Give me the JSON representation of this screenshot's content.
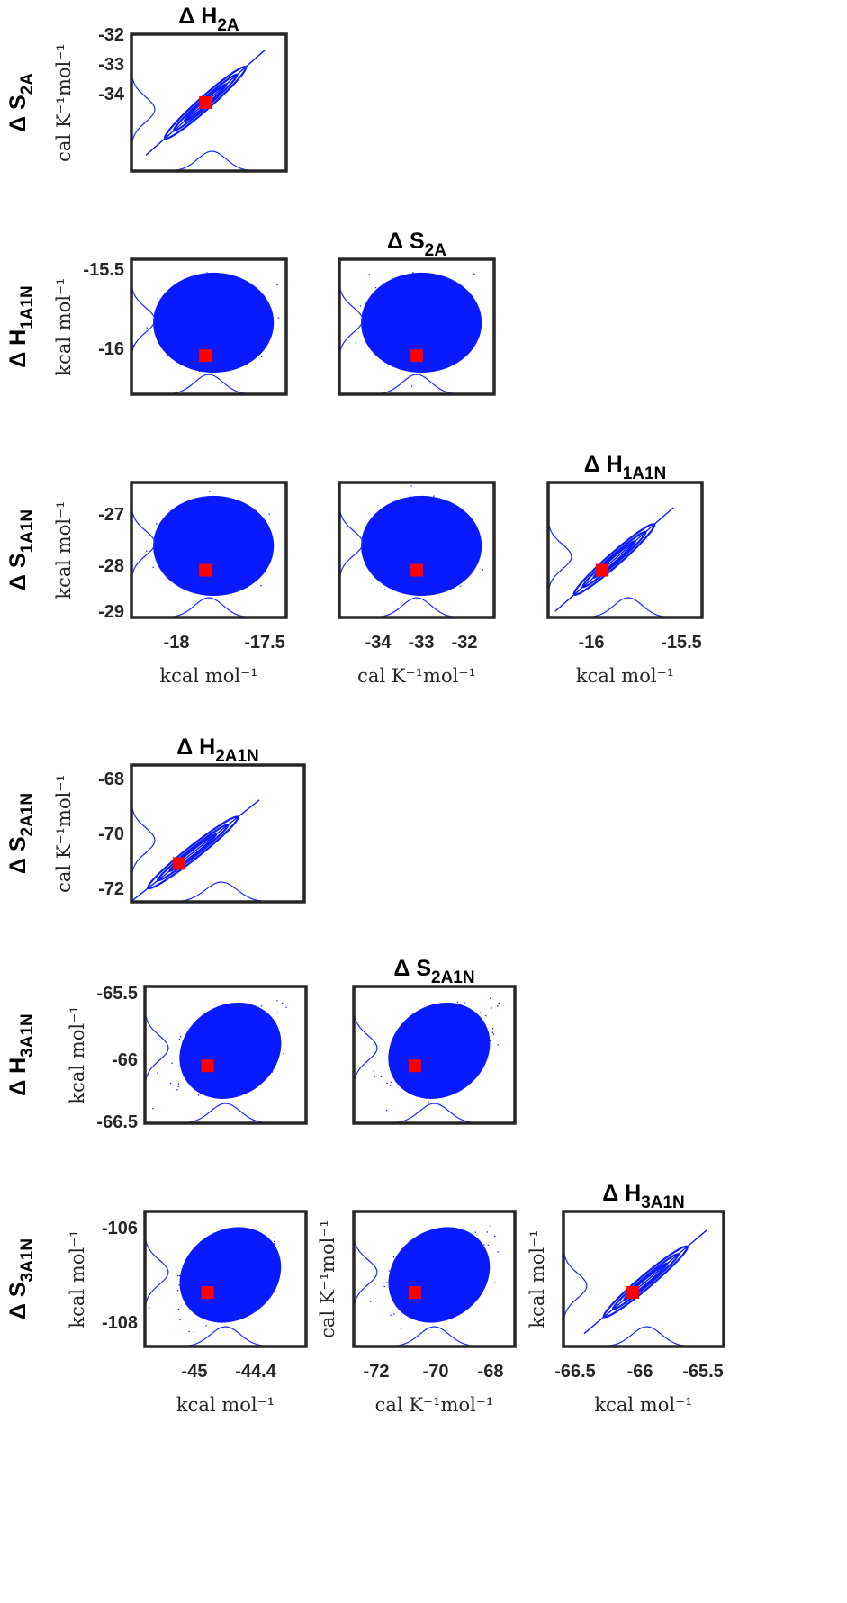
{
  "colors": {
    "samples": "#0a1aff",
    "estimate": "#ff0000",
    "frame": "#262626"
  },
  "chart_data": [
    {
      "type": "scatter",
      "name_top": "Δ H",
      "name_top_sub": "2A",
      "name_left": "Δ S",
      "name_left_sub": "2A",
      "ylabel": "cal K⁻¹mol⁻¹",
      "yticks": [
        "-32",
        "-33",
        "-34"
      ],
      "xlim": [
        -18.3,
        -17.4
      ],
      "ylim": [
        -34.9,
        -32
      ],
      "correlation": 0.99,
      "estimate": {
        "x": -17.87,
        "y": -33.45
      }
    },
    {
      "type": "scatter",
      "name_left": "Δ H",
      "name_left_sub": "1A1N",
      "ylabel": "kcal mol⁻¹",
      "yticks": [
        "-15.5",
        "-16"
      ],
      "xlim": [
        -18.3,
        -17.4
      ],
      "ylim": [
        -16.22,
        -15.45
      ],
      "correlation": 0.0,
      "estimate": {
        "x": -17.87,
        "y": -16.0
      }
    },
    {
      "type": "scatter",
      "name_top": "Δ S",
      "name_top_sub": "2A",
      "xlim": [
        -34.9,
        -32
      ],
      "ylim": [
        -16.22,
        -15.45
      ],
      "correlation": 0.0,
      "estimate": {
        "x": -33.45,
        "y": -16.0
      }
    },
    {
      "type": "scatter",
      "name_left": "Δ S",
      "name_left_sub": "1A1N",
      "ylabel": "kcal mol⁻¹",
      "yticks": [
        "-27",
        "-28",
        "-29"
      ],
      "xticks": [
        "-18",
        "-17.5"
      ],
      "xlabel": "kcal mol⁻¹",
      "xlim": [
        -18.3,
        -17.4
      ],
      "ylim": [
        -29.2,
        -26.2
      ],
      "correlation": 0.0,
      "estimate": {
        "x": -17.87,
        "y": -28.15
      }
    },
    {
      "type": "scatter",
      "xticks": [
        "-34",
        "-33",
        "-32"
      ],
      "xlabel": "cal K⁻¹mol⁻¹",
      "xlim": [
        -34.9,
        -32
      ],
      "ylim": [
        -29.2,
        -26.2
      ],
      "correlation": 0.0,
      "estimate": {
        "x": -33.45,
        "y": -28.15
      }
    },
    {
      "type": "scatter",
      "name_top": "Δ H",
      "name_top_sub": "1A1N",
      "xticks": [
        "-16",
        "-15.5"
      ],
      "xlabel": "kcal mol⁻¹",
      "xlim": [
        -16.35,
        -15.35
      ],
      "ylim": [
        -29.2,
        -26.2
      ],
      "correlation": 0.99,
      "estimate": {
        "x": -16.0,
        "y": -28.15
      }
    },
    {
      "type": "scatter",
      "name_top": "Δ H",
      "name_top_sub": "2A1N",
      "name_left": "Δ S",
      "name_left_sub": "2A1N",
      "ylabel": "cal K⁻¹mol⁻¹",
      "yticks": [
        "-68",
        "-70",
        "-72"
      ],
      "xlim": [
        -46.2,
        -43.3
      ],
      "ylim": [
        -72.4,
        -67.4
      ],
      "correlation": 0.99,
      "estimate": {
        "x": -45.4,
        "y": -71.0
      }
    },
    {
      "type": "scatter",
      "name_left": "Δ H",
      "name_left_sub": "3A1N",
      "ylabel": "kcal mol⁻¹",
      "yticks": [
        "-65.5",
        "-66",
        "-66.5"
      ],
      "xlim": [
        -45.7,
        -43.9
      ],
      "ylim": [
        -66.5,
        -65.5
      ],
      "correlation": 0.6,
      "estimate": {
        "x": -45.0,
        "y": -66.08
      }
    },
    {
      "type": "scatter",
      "name_top": "Δ S",
      "name_top_sub": "2A1N",
      "xlim": [
        -72.9,
        -67.9
      ],
      "ylim": [
        -66.5,
        -65.5
      ],
      "correlation": 0.6,
      "estimate": {
        "x": -71.0,
        "y": -66.08
      }
    },
    {
      "type": "scatter",
      "name_left": "Δ S",
      "name_left_sub": "3A1N",
      "ylabel": "kcal mol⁻¹",
      "yticks": [
        "-106",
        "-108"
      ],
      "xticks": [
        "-45",
        "-44.4"
      ],
      "xlabel": "kcal mol⁻¹",
      "xlim": [
        -45.7,
        -43.9
      ],
      "ylim": [
        -109.1,
        -105.6
      ],
      "correlation": 0.6,
      "estimate": {
        "x": -45.0,
        "y": -107.7
      }
    },
    {
      "type": "scatter",
      "ylabel": "cal K⁻¹mol⁻¹",
      "xticks": [
        "-72",
        "-70",
        "-68"
      ],
      "xlabel": "cal K⁻¹mol⁻¹",
      "xlim": [
        -72.9,
        -67.9
      ],
      "ylim": [
        -109.1,
        -105.6
      ],
      "correlation": 0.6,
      "estimate": {
        "x": -71.0,
        "y": -107.7
      }
    },
    {
      "type": "scatter",
      "name_top": "Δ H",
      "name_top_sub": "3A1N",
      "ylabel": "kcal mol⁻¹",
      "xticks": [
        "-66.5",
        "-66",
        "-65.5"
      ],
      "xlabel": "kcal mol⁻¹",
      "xlim": [
        -66.6,
        -65.4
      ],
      "ylim": [
        -109.1,
        -105.6
      ],
      "correlation": 0.99,
      "estimate": {
        "x": -66.08,
        "y": -107.7
      }
    }
  ]
}
